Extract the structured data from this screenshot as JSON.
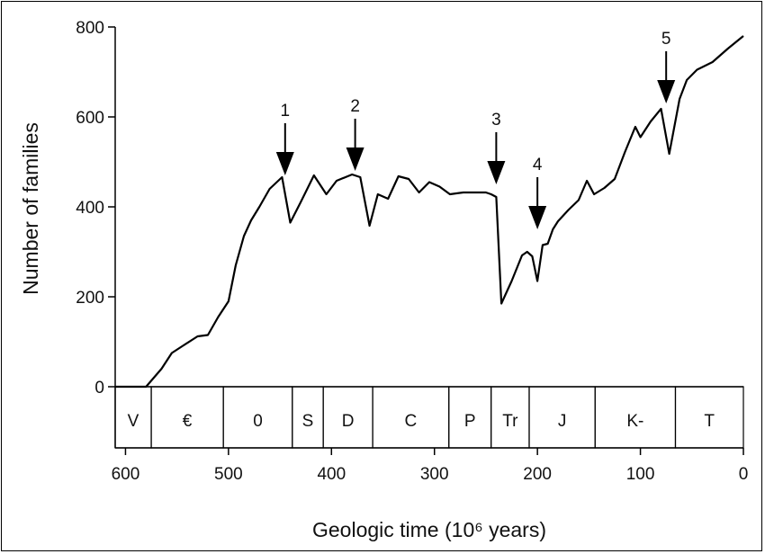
{
  "chart_data": {
    "type": "line",
    "title": "",
    "xlabel": "Geologic time (10⁶ years)",
    "ylabel": "Number of families",
    "xlim": [
      610,
      0
    ],
    "ylim": [
      0,
      800
    ],
    "x_ticks": [
      600,
      500,
      400,
      300,
      200,
      100,
      0
    ],
    "x_tick_labels": [
      "600",
      "500",
      "400",
      "300",
      "200",
      "100",
      "0"
    ],
    "y_ticks": [
      0,
      200,
      400,
      600,
      800
    ],
    "y_tick_labels": [
      "0",
      "200",
      "400",
      "600",
      "800"
    ],
    "grid": false,
    "legend": "none",
    "series": [
      {
        "x": [
          610,
          580,
          565,
          555,
          545,
          530,
          520,
          510,
          500,
          493,
          485,
          478,
          470,
          460,
          448,
          440,
          430,
          417,
          405,
          395,
          380,
          372,
          363,
          355,
          345,
          335,
          325,
          315,
          305,
          295,
          285,
          272,
          260,
          250,
          245,
          240,
          235,
          225,
          215,
          210,
          205,
          200,
          195,
          190,
          185,
          180,
          170,
          160,
          152,
          145,
          135,
          125,
          115,
          105,
          100,
          90,
          80,
          72,
          62,
          55,
          45,
          30,
          15,
          0
        ],
        "y": [
          0,
          0,
          40,
          75,
          90,
          112,
          115,
          155,
          190,
          270,
          335,
          370,
          400,
          440,
          466,
          365,
          410,
          470,
          428,
          458,
          472,
          466,
          358,
          428,
          418,
          468,
          462,
          432,
          455,
          445,
          428,
          432,
          432,
          432,
          428,
          422,
          185,
          235,
          292,
          300,
          290,
          235,
          315,
          318,
          350,
          368,
          393,
          415,
          458,
          428,
          442,
          462,
          522,
          578,
          555,
          590,
          618,
          518,
          640,
          682,
          705,
          722,
          752,
          780
        ]
      }
    ],
    "annotations": [
      {
        "label": "1",
        "x": 445,
        "y": 470
      },
      {
        "label": "2",
        "x": 377,
        "y": 480
      },
      {
        "label": "3",
        "x": 240,
        "y": 450
      },
      {
        "label": "4",
        "x": 200,
        "y": 350
      },
      {
        "label": "5",
        "x": 75,
        "y": 630
      }
    ],
    "periods": [
      {
        "label": "V",
        "start": 610,
        "end": 575
      },
      {
        "label": "€",
        "start": 575,
        "end": 505
      },
      {
        "label": "0",
        "start": 505,
        "end": 438
      },
      {
        "label": "S",
        "start": 438,
        "end": 408
      },
      {
        "label": "D",
        "start": 408,
        "end": 360
      },
      {
        "label": "C",
        "start": 360,
        "end": 286
      },
      {
        "label": "P",
        "start": 286,
        "end": 245
      },
      {
        "label": "Tr",
        "start": 245,
        "end": 208
      },
      {
        "label": "J",
        "start": 208,
        "end": 144
      },
      {
        "label": "K-",
        "start": 144,
        "end": 66
      },
      {
        "label": "T",
        "start": 66,
        "end": 0
      }
    ]
  }
}
